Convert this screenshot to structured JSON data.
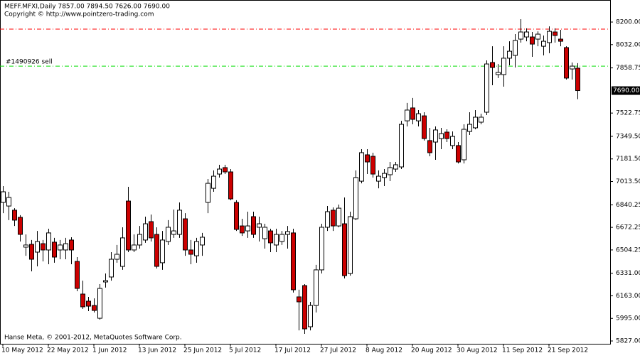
{
  "chart_data": {
    "type": "candlestick",
    "title": "MEFF.MFXI,Daily  7857.00 7894.50 7626.00 7690.00",
    "subtitle": "Copyright © http://www.pointzero-trading.com",
    "footer": "Hanse Meta, © 2001-2012, MetaQuotes Software Corp.",
    "categories": [
      "10 May 2012",
      null,
      null,
      null,
      null,
      null,
      null,
      null,
      "22 May 2012",
      null,
      null,
      null,
      null,
      null,
      null,
      null,
      "1 Jun 2012",
      null,
      null,
      null,
      null,
      null,
      null,
      null,
      "13 Jun 2012",
      null,
      null,
      null,
      null,
      null,
      null,
      null,
      "25 Jun 2012",
      null,
      null,
      null,
      null,
      null,
      null,
      null,
      "5 Jul 2012",
      null,
      null,
      null,
      null,
      null,
      null,
      null,
      "17 Jul 2012",
      null,
      null,
      null,
      null,
      null,
      null,
      null,
      "27 Jul 2012",
      null,
      null,
      null,
      null,
      null,
      null,
      null,
      "8 Aug 2012",
      null,
      null,
      null,
      null,
      null,
      null,
      null,
      "20 Aug 2012",
      null,
      null,
      null,
      null,
      null,
      null,
      null,
      "30 Aug 2012",
      null,
      null,
      null,
      null,
      null,
      null,
      null,
      "11 Sep 2012",
      null,
      null,
      null,
      null,
      null,
      null,
      null,
      "21 Sep 2012",
      null,
      null,
      null,
      null,
      null
    ],
    "open": [
      6858,
      6831,
      6800,
      6747,
      6525,
      6546,
      6488,
      6551,
      6504,
      6562,
      6504,
      6504,
      6578,
      6419,
      6176,
      6123,
      6091,
      5996,
      6266,
      6303,
      6435,
      6382,
      6868,
      6504,
      6541,
      6578,
      6715,
      6620,
      6409,
      6567,
      6620,
      6620,
      6736,
      6504,
      6461,
      6541,
      6858,
      6963,
      7069,
      7117,
      7085,
      6858,
      6683,
      6646,
      6752,
      6673,
      6588,
      6646,
      6541,
      6567,
      6620,
      6631,
      6155,
      6239,
      5933,
      6091,
      6356,
      6673,
      6800,
      6683,
      6699,
      6329,
      6736,
      7016,
      7212,
      7201,
      7016,
      7043,
      7064,
      7106,
      7122,
      7465,
      7561,
      7465,
      7502,
      7318,
      7307,
      7333,
      7381,
      7281,
      7281,
      7175,
      7386,
      7413,
      7455,
      7529,
      7899,
      7809,
      7809,
      7931,
      7952,
      8073,
      8089,
      8089,
      8073,
      8020,
      8047,
      8126,
      8073,
      8010,
      7851,
      7857
    ],
    "high": [
      6979,
      6937,
      6815,
      6763,
      6620,
      6578,
      6646,
      6578,
      6662,
      6594,
      6578,
      6594,
      6599,
      6451,
      6276,
      6155,
      6144,
      6250,
      6329,
      6488,
      6541,
      6673,
      6974,
      6620,
      6683,
      6752,
      6768,
      6673,
      6646,
      6726,
      6805,
      6858,
      6778,
      6578,
      6594,
      6631,
      7032,
      7096,
      7138,
      7138,
      7106,
      6874,
      6736,
      6789,
      6789,
      6752,
      6699,
      6662,
      6662,
      6646,
      6683,
      6662,
      6208,
      6250,
      6118,
      6393,
      6699,
      6831,
      6821,
      6842,
      6895,
      6789,
      7096,
      7254,
      7254,
      7228,
      7096,
      7106,
      7159,
      7159,
      7465,
      7598,
      7635,
      7545,
      7529,
      7413,
      7423,
      7413,
      7402,
      7386,
      7307,
      7439,
      7529,
      7545,
      7518,
      7915,
      8020,
      7888,
      8020,
      8057,
      8110,
      8221,
      8153,
      8126,
      8131,
      8100,
      8168,
      8153,
      8142,
      8020,
      7899,
      7894.5
    ],
    "low": [
      6778,
      6726,
      6683,
      6567,
      6461,
      6345,
      6382,
      6419,
      6398,
      6409,
      6435,
      6435,
      6398,
      6197,
      6065,
      6049,
      6039,
      5986,
      6224,
      6276,
      6409,
      6356,
      6488,
      6488,
      6514,
      6557,
      6567,
      6366,
      6356,
      6541,
      6594,
      6594,
      6461,
      6398,
      6409,
      6461,
      6778,
      6937,
      7043,
      7069,
      6874,
      6646,
      6609,
      6594,
      6594,
      6567,
      6514,
      6488,
      6488,
      6541,
      6514,
      6187,
      5906,
      5880,
      5906,
      6039,
      6329,
      6646,
      6646,
      6673,
      6292,
      6313,
      6726,
      7000,
      7069,
      7043,
      6963,
      6979,
      7016,
      7085,
      7106,
      7423,
      7439,
      7423,
      7318,
      7201,
      7175,
      7254,
      7307,
      7254,
      7148,
      7148,
      7360,
      7402,
      7439,
      7508,
      7730,
      7783,
      7719,
      7878,
      7862,
      8047,
      8057,
      7941,
      8020,
      7952,
      7968,
      8047,
      8020,
      7772,
      7772,
      7626
    ],
    "close": [
      6937,
      6895,
      6726,
      6620,
      6541,
      6435,
      6567,
      6504,
      6631,
      6451,
      6541,
      6551,
      6504,
      6218,
      6081,
      6086,
      6054,
      6218,
      6276,
      6435,
      6472,
      6594,
      6504,
      6541,
      6620,
      6699,
      6594,
      6382,
      6578,
      6673,
      6646,
      6800,
      6504,
      6472,
      6567,
      6599,
      7000,
      7053,
      7106,
      7085,
      6884,
      6657,
      6631,
      6683,
      6620,
      6699,
      6673,
      6557,
      6620,
      6620,
      6641,
      6208,
      6118,
      5917,
      6091,
      6356,
      6673,
      6789,
      6683,
      6815,
      6313,
      6752,
      7043,
      7228,
      7159,
      7069,
      7053,
      7074,
      7117,
      7138,
      7439,
      7545,
      7476,
      7518,
      7333,
      7228,
      7397,
      7370,
      7333,
      7349,
      7159,
      7402,
      7439,
      7492,
      7492,
      7888,
      7862,
      7825,
      7931,
      7983,
      8063,
      8126,
      8126,
      8036,
      8110,
      8057,
      8131,
      8100,
      8057,
      7783,
      7872,
      7690
    ],
    "up_color": "#ffffff",
    "down_color": "#cc0000",
    "ylim": [
      5806,
      8364
    ],
    "yticks": [
      {
        "value": 8200,
        "label": "8200.00"
      },
      {
        "value": 8032,
        "label": "8032.00"
      },
      {
        "value": 7858.75,
        "label": "7858.75"
      },
      {
        "value": 7522.75,
        "label": "7522.75"
      },
      {
        "value": 7349.5,
        "label": "7349.50"
      },
      {
        "value": 7181.5,
        "label": "7181.50"
      },
      {
        "value": 7013.5,
        "label": "7013.50"
      },
      {
        "value": 6840.25,
        "label": "6840.25"
      },
      {
        "value": 6672.25,
        "label": "6672.25"
      },
      {
        "value": 6504.25,
        "label": "6504.25"
      },
      {
        "value": 6331,
        "label": "6331.00"
      },
      {
        "value": 6163,
        "label": "6163.00"
      },
      {
        "value": 5995,
        "label": "5995.00"
      },
      {
        "value": 5827,
        "label": "5827.00"
      }
    ],
    "last_price": {
      "value": 7690,
      "label": "7690.00"
    },
    "levels": [
      {
        "value": 8147,
        "color": "#ff0000"
      },
      {
        "name": "#1490926 sell",
        "value": 7872,
        "color": "#00dd00"
      }
    ]
  }
}
